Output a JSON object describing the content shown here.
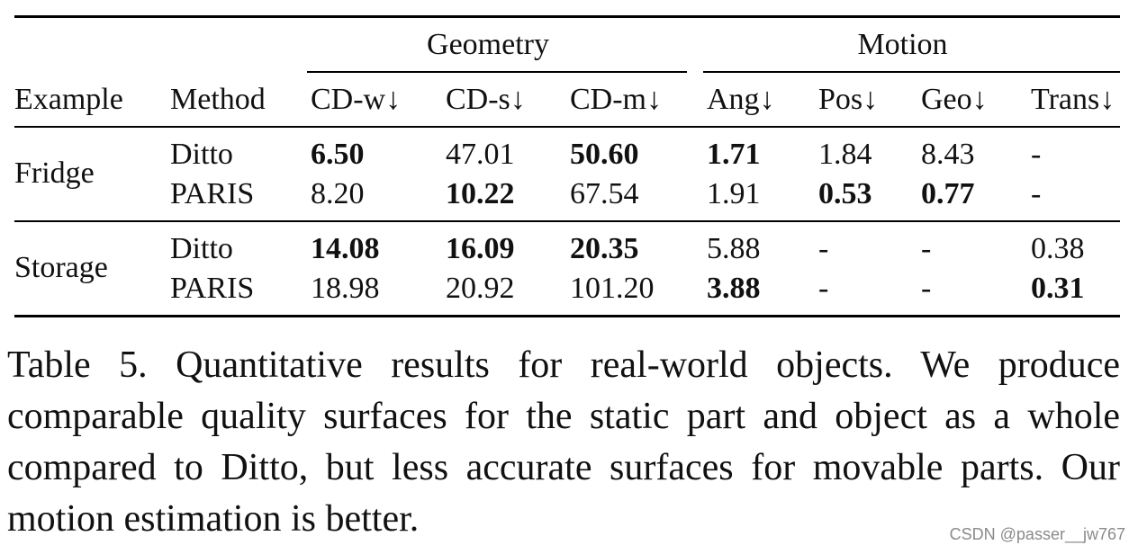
{
  "table": {
    "group_headers": {
      "geometry": "Geometry",
      "motion": "Motion"
    },
    "columns": [
      "Example",
      "Method",
      "CD-w↓",
      "CD-s↓",
      "CD-m↓",
      "Ang↓",
      "Pos↓",
      "Geo↓",
      "Trans↓"
    ],
    "rows": [
      {
        "example": "Fridge",
        "method": "Ditto",
        "cells": [
          {
            "v": "6.50",
            "bold": true
          },
          {
            "v": "47.01",
            "bold": false
          },
          {
            "v": "50.60",
            "bold": true
          },
          {
            "v": "1.71",
            "bold": true
          },
          {
            "v": "1.84",
            "bold": false
          },
          {
            "v": "8.43",
            "bold": false
          },
          {
            "v": "-",
            "bold": false
          }
        ]
      },
      {
        "example": "",
        "method": "PARIS",
        "cells": [
          {
            "v": "8.20",
            "bold": false
          },
          {
            "v": "10.22",
            "bold": true
          },
          {
            "v": "67.54",
            "bold": false
          },
          {
            "v": "1.91",
            "bold": false
          },
          {
            "v": "0.53",
            "bold": true
          },
          {
            "v": "0.77",
            "bold": true
          },
          {
            "v": "-",
            "bold": false
          }
        ]
      },
      {
        "example": "Storage",
        "method": "Ditto",
        "cells": [
          {
            "v": "14.08",
            "bold": true
          },
          {
            "v": "16.09",
            "bold": true
          },
          {
            "v": "20.35",
            "bold": true
          },
          {
            "v": "5.88",
            "bold": false
          },
          {
            "v": "-",
            "bold": false
          },
          {
            "v": "-",
            "bold": false
          },
          {
            "v": "0.38",
            "bold": false
          }
        ]
      },
      {
        "example": "",
        "method": "PARIS",
        "cells": [
          {
            "v": "18.98",
            "bold": false
          },
          {
            "v": "20.92",
            "bold": false
          },
          {
            "v": "101.20",
            "bold": false
          },
          {
            "v": "3.88",
            "bold": true
          },
          {
            "v": "-",
            "bold": false
          },
          {
            "v": "-",
            "bold": false
          },
          {
            "v": "0.31",
            "bold": true
          }
        ]
      }
    ]
  },
  "caption": "Table 5. Quantitative results for real-world objects.  We produce comparable quality surfaces for the static part and object as a whole compared to Ditto, but less accurate surfaces for movable parts. Our motion estimation is better.",
  "watermark": "CSDN @passer__jw767"
}
